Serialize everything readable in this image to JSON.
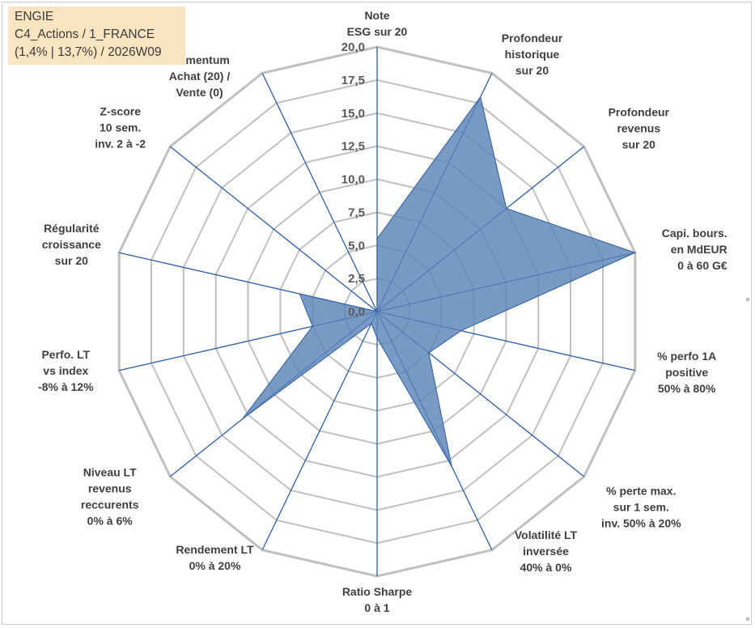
{
  "header": {
    "line1": "ENGIE",
    "line2": "C4_Actions / 1_FRANCE",
    "line3": "(1,4% | 13,7%) / 2026W09"
  },
  "colors": {
    "fill": "#5b84b8",
    "stroke": "#3e6aa3",
    "axis": "#2e5fa8",
    "grid": "#c0c0c0",
    "header_bg": "#fbe5c0"
  },
  "chart_data": {
    "type": "radar",
    "rmin": 0,
    "rmax": 20,
    "tick_step": 2.5,
    "tick_labels": [
      "0,0",
      "2,5",
      "5,0",
      "7,5",
      "10,0",
      "12,5",
      "15,0",
      "17,5",
      "20,0"
    ],
    "categories": [
      [
        "Note",
        "ESG sur 20"
      ],
      [
        "Profondeur",
        "historique",
        "sur 20"
      ],
      [
        "Profondeur",
        "revenus",
        "sur 20"
      ],
      [
        "Capi. bours.",
        "en MdEUR",
        "0 à 60 G€"
      ],
      [
        "% perfo 1A",
        "positive",
        "50% à 80%"
      ],
      [
        "% perte max.",
        "sur 1 sem.",
        "inv. 50% à 20%"
      ],
      [
        "Volatilité LT",
        "inversée",
        "40% à 0%"
      ],
      [
        "Ratio Sharpe",
        "0 à 1"
      ],
      [
        "Rendement LT",
        "0% à 20%"
      ],
      [
        "Niveau LT",
        "revenus",
        "reccurents",
        "0% à 6%"
      ],
      [
        "Perfo. LT",
        "vs index",
        "-8% à 12%"
      ],
      [
        "Régularité",
        "croissance",
        "sur 20"
      ],
      [
        "Z-score",
        "10 sem.",
        "inv. 2 à -2"
      ],
      [
        "Momentum",
        "Achat (20) /",
        "Vente (0)"
      ]
    ],
    "series": [
      {
        "values": [
          5.5,
          18.0,
          12.5,
          20.0,
          6.5,
          5.0,
          13.0,
          2.0,
          1.0,
          13.0,
          5.0,
          6.0,
          0.0,
          0.0
        ]
      }
    ],
    "grid": true
  }
}
